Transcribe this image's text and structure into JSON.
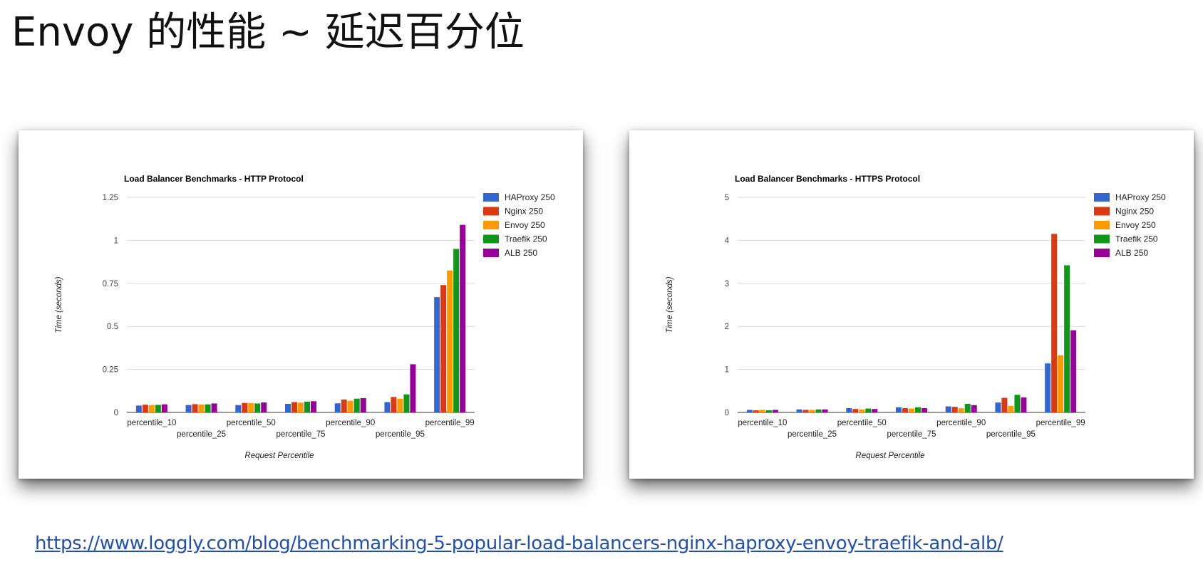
{
  "slide": {
    "title": "Envoy 的性能  ~ 延迟百分位",
    "link": "https://www.loggly.com/blog/benchmarking-5-popular-load-balancers-nginx-haproxy-envoy-traefik-and-alb/"
  },
  "colors": {
    "HAProxy": "#3366cc",
    "Nginx": "#dc3912",
    "Envoy": "#ff9900",
    "Traefik": "#109618",
    "ALB": "#990099"
  },
  "chart_data": [
    {
      "type": "bar",
      "title": "Load Balancer Benchmarks - HTTP Protocol",
      "xlabel": "Request Percentile",
      "ylabel": "Time (seconds)",
      "ylim": [
        0,
        1.25
      ],
      "yticks": [
        "0",
        "0.25",
        "0.5",
        "0.75",
        "1",
        "1.25"
      ],
      "grid": true,
      "legend_position": "right",
      "categories": [
        "percentile_10",
        "percentile_25",
        "percentile_50",
        "percentile_75",
        "percentile_90",
        "percentile_95",
        "percentile_99"
      ],
      "series": [
        {
          "name": "HAProxy 250",
          "values": [
            0.04,
            0.043,
            0.043,
            0.05,
            0.053,
            0.06,
            0.67
          ]
        },
        {
          "name": "Nginx 250",
          "values": [
            0.045,
            0.048,
            0.055,
            0.06,
            0.075,
            0.09,
            0.74
          ]
        },
        {
          "name": "Envoy 250",
          "values": [
            0.043,
            0.046,
            0.054,
            0.057,
            0.068,
            0.08,
            0.825
          ]
        },
        {
          "name": "Traefik 250",
          "values": [
            0.044,
            0.047,
            0.052,
            0.063,
            0.08,
            0.105,
            0.95
          ]
        },
        {
          "name": "ALB 250",
          "values": [
            0.047,
            0.052,
            0.058,
            0.065,
            0.083,
            0.28,
            1.09
          ]
        }
      ]
    },
    {
      "type": "bar",
      "title": "Load Balancer Benchmarks - HTTPS Protocol",
      "xlabel": "Request Percentile",
      "ylabel": "Time (seconds)",
      "ylim": [
        0,
        5
      ],
      "yticks": [
        "0",
        "1",
        "2",
        "3",
        "4",
        "5"
      ],
      "grid": true,
      "legend_position": "right",
      "categories": [
        "percentile_10",
        "percentile_25",
        "percentile_50",
        "percentile_75",
        "percentile_90",
        "percentile_95",
        "percentile_99"
      ],
      "series": [
        {
          "name": "HAProxy 250",
          "values": [
            0.06,
            0.07,
            0.1,
            0.12,
            0.14,
            0.23,
            1.14
          ]
        },
        {
          "name": "Nginx 250",
          "values": [
            0.05,
            0.06,
            0.08,
            0.1,
            0.13,
            0.34,
            4.15
          ]
        },
        {
          "name": "Envoy 250",
          "values": [
            0.06,
            0.06,
            0.07,
            0.09,
            0.1,
            0.15,
            1.33
          ]
        },
        {
          "name": "Traefik 250",
          "values": [
            0.05,
            0.07,
            0.09,
            0.12,
            0.2,
            0.41,
            3.42
          ]
        },
        {
          "name": "ALB 250",
          "values": [
            0.06,
            0.07,
            0.08,
            0.1,
            0.17,
            0.35,
            1.91
          ]
        }
      ]
    }
  ]
}
